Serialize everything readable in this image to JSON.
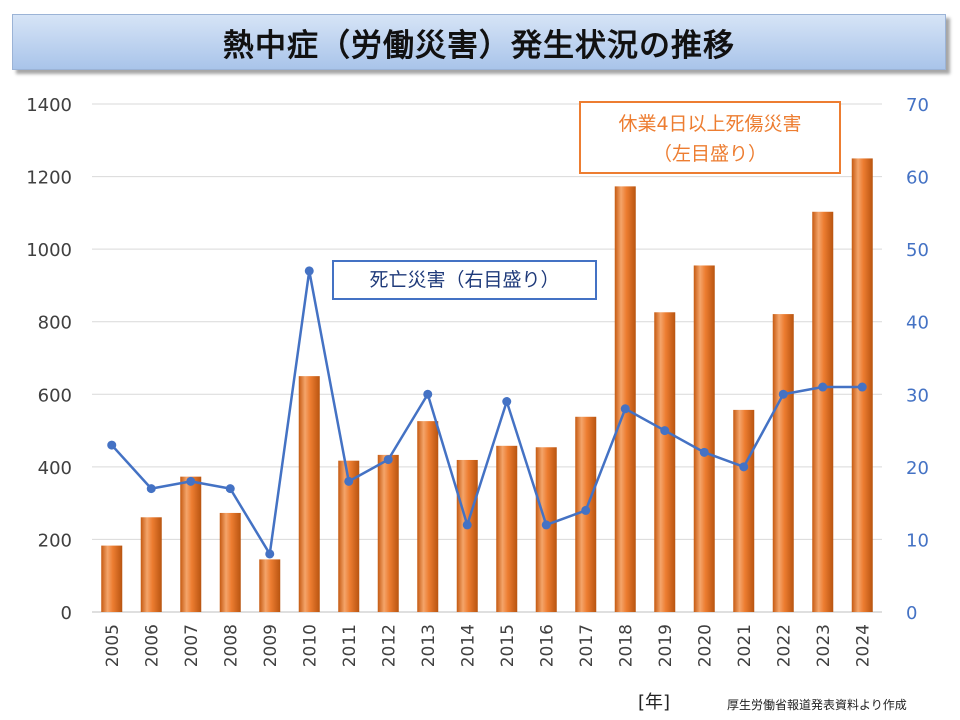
{
  "title": "熱中症（労働災害）発生状況の推移",
  "annotations": {
    "injury_line1": "休業4日以上死傷災害",
    "injury_line2": "（左目盛り）",
    "death": "死亡災害（右目盛り）"
  },
  "x_unit": "[年]",
  "source": "厚生労働省報道発表資料より作成",
  "colors": {
    "bar": "#ed7d31",
    "line": "#4472c4",
    "left_axis_text": "#404040",
    "right_axis_text": "#4472c4"
  },
  "chart_data": {
    "type": "bar+line",
    "title": "熱中症（労働災害）発生状況の推移",
    "categories": [
      "2005",
      "2006",
      "2007",
      "2008",
      "2009",
      "2010",
      "2011",
      "2012",
      "2013",
      "2014",
      "2015",
      "2016",
      "2017",
      "2018",
      "2019",
      "2020",
      "2021",
      "2022",
      "2023",
      "2024"
    ],
    "series": [
      {
        "name": "休業4日以上死傷災害（左目盛り）",
        "type": "bar",
        "axis": "left",
        "values": [
          183,
          261,
          373,
          273,
          145,
          650,
          417,
          433,
          526,
          419,
          458,
          454,
          538,
          1173,
          826,
          955,
          557,
          821,
          1103,
          1250
        ]
      },
      {
        "name": "死亡災害（右目盛り）",
        "type": "line",
        "axis": "right",
        "values": [
          23,
          17,
          18,
          17,
          8,
          47,
          18,
          21,
          30,
          12,
          29,
          12,
          14,
          28,
          25,
          22,
          20,
          30,
          31,
          31
        ]
      }
    ],
    "y_left": {
      "min": 0,
      "max": 1400,
      "ticks": [
        0,
        200,
        400,
        600,
        800,
        1000,
        1200,
        1400
      ]
    },
    "y_right": {
      "min": 0,
      "max": 70,
      "ticks": [
        0,
        10,
        20,
        30,
        40,
        50,
        60,
        70
      ]
    },
    "xlabel": "[年]",
    "grid": true
  }
}
